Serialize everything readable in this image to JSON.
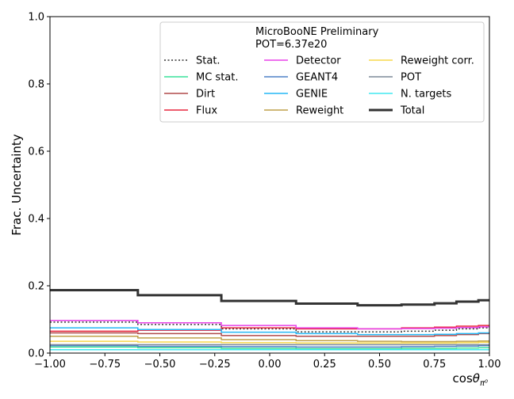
{
  "chart_data": {
    "type": "line",
    "step": true,
    "xlabel_main": "cos",
    "xlabel_sym": "θ",
    "xlabel_sub": "π⁰",
    "ylabel": "Frac. Uncertainty",
    "xlim": [
      -1.0,
      1.0
    ],
    "ylim": [
      0.0,
      1.0
    ],
    "xticks": [
      "−1.00",
      "−0.75",
      "−0.50",
      "−0.25",
      "0.00",
      "0.25",
      "0.50",
      "0.75",
      "1.00"
    ],
    "xtick_values": [
      -1.0,
      -0.75,
      -0.5,
      -0.25,
      0.0,
      0.25,
      0.5,
      0.75,
      1.0
    ],
    "yticks": [
      "0.0",
      "0.2",
      "0.4",
      "0.6",
      "0.8",
      "1.0"
    ],
    "ytick_values": [
      0.0,
      0.2,
      0.4,
      0.6,
      0.8,
      1.0
    ],
    "legend": {
      "title_line1": "MicroBooNE Preliminary",
      "title_line2": "POT=6.37e20",
      "placement": "top-right"
    },
    "bin_edges": [
      -1.0,
      -0.6,
      -0.22,
      0.12,
      0.4,
      0.6,
      0.75,
      0.85,
      0.95,
      1.0
    ],
    "series": [
      {
        "name": "Stat.",
        "color": "#333333",
        "style": "dotted",
        "width": 1.5,
        "values": [
          0.092,
          0.085,
          0.072,
          0.063,
          0.063,
          0.065,
          0.068,
          0.072,
          0.075
        ]
      },
      {
        "name": "MC stat.",
        "color": "#39e29a",
        "style": "solid",
        "width": 1.5,
        "values": [
          0.018,
          0.016,
          0.014,
          0.013,
          0.013,
          0.014,
          0.014,
          0.015,
          0.016
        ]
      },
      {
        "name": "Dirt",
        "color": "#b04a4a",
        "style": "solid",
        "width": 1.5,
        "values": [
          0.06,
          0.058,
          0.052,
          0.05,
          0.05,
          0.05,
          0.052,
          0.055,
          0.058
        ]
      },
      {
        "name": "Flux",
        "color": "#e8263e",
        "style": "solid",
        "width": 1.5,
        "values": [
          0.065,
          0.068,
          0.075,
          0.072,
          0.072,
          0.075,
          0.077,
          0.08,
          0.082
        ]
      },
      {
        "name": "Detector",
        "color": "#e840e8",
        "style": "solid",
        "width": 1.5,
        "values": [
          0.097,
          0.09,
          0.082,
          0.075,
          0.072,
          0.073,
          0.074,
          0.076,
          0.078
        ]
      },
      {
        "name": "GEANT4",
        "color": "#4f81c7",
        "style": "solid",
        "width": 1.5,
        "values": [
          0.022,
          0.02,
          0.019,
          0.018,
          0.018,
          0.019,
          0.02,
          0.021,
          0.022
        ]
      },
      {
        "name": "GENIE",
        "color": "#25b7f5",
        "style": "solid",
        "width": 1.5,
        "values": [
          0.075,
          0.07,
          0.062,
          0.058,
          0.055,
          0.055,
          0.056,
          0.058,
          0.06
        ]
      },
      {
        "name": "Reweight",
        "color": "#bfa14a",
        "style": "solid",
        "width": 1.5,
        "values": [
          0.05,
          0.045,
          0.04,
          0.037,
          0.035,
          0.034,
          0.034,
          0.035,
          0.036
        ]
      },
      {
        "name": "Reweight corr.",
        "color": "#f7d84a",
        "style": "solid",
        "width": 1.5,
        "values": [
          0.035,
          0.033,
          0.031,
          0.03,
          0.03,
          0.03,
          0.03,
          0.031,
          0.032
        ]
      },
      {
        "name": "POT",
        "color": "#7d8a99",
        "style": "solid",
        "width": 1.5,
        "values": [
          0.025,
          0.025,
          0.025,
          0.025,
          0.025,
          0.025,
          0.025,
          0.025,
          0.025
        ]
      },
      {
        "name": "N. targets",
        "color": "#40e8f0",
        "style": "solid",
        "width": 1.5,
        "values": [
          0.01,
          0.01,
          0.01,
          0.01,
          0.01,
          0.01,
          0.01,
          0.01,
          0.01
        ]
      },
      {
        "name": "Total",
        "color": "#333333",
        "style": "solid",
        "width": 3,
        "values": [
          0.187,
          0.172,
          0.155,
          0.147,
          0.142,
          0.144,
          0.148,
          0.153,
          0.157
        ]
      }
    ]
  }
}
